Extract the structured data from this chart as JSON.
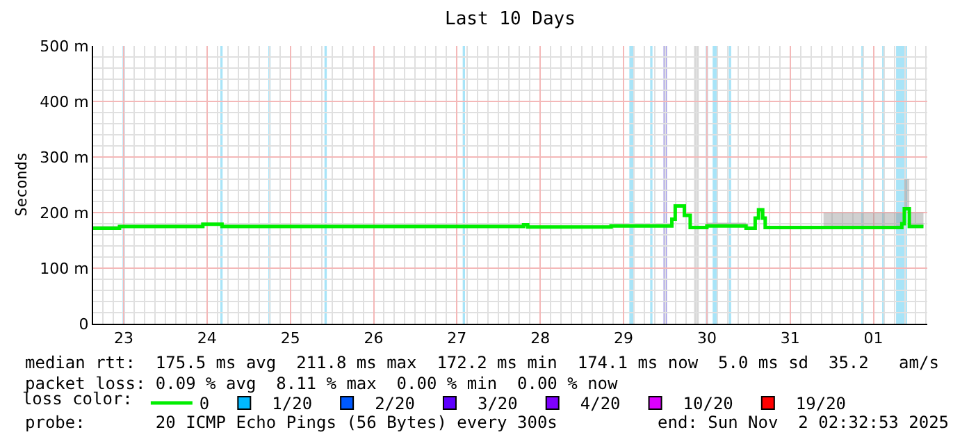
{
  "chart_data": {
    "type": "step",
    "title": "Last 10 Days",
    "ylabel": "Seconds",
    "x": [
      "2025-10-22T15:12",
      "2025-10-22T21:36",
      "2025-10-22T22:48",
      "2025-10-23T21:36",
      "2025-10-23T22:48",
      "2025-10-24T03:36",
      "2025-10-24T04:19",
      "2025-10-27T18:00",
      "2025-10-27T19:12",
      "2025-10-27T20:24",
      "2025-10-28T19:12",
      "2025-10-28T20:24",
      "2025-10-29T13:12",
      "2025-10-29T13:55",
      "2025-10-29T14:53",
      "2025-10-29T16:48",
      "2025-10-29T17:31",
      "2025-10-29T18:29",
      "2025-10-29T19:12",
      "2025-10-29T22:48",
      "2025-10-30T00:00",
      "2025-10-30T09:36",
      "2025-10-30T11:17",
      "2025-10-30T13:12",
      "2025-10-30T13:55",
      "2025-10-30T14:53",
      "2025-10-30T16:05",
      "2025-10-30T16:48",
      "2025-10-31T09:36",
      "2025-11-01T07:12",
      "2025-11-01T08:10",
      "2025-11-01T08:53",
      "2025-11-01T10:05",
      "2025-11-01T10:19",
      "2025-11-01T14:24"
    ],
    "series": [
      {
        "name": "0",
        "color": "#00ee00",
        "values": [
          172,
          172,
          175,
          175,
          179,
          179,
          175,
          175,
          178,
          174,
          174,
          176,
          176,
          188,
          212,
          212,
          195,
          195,
          173,
          173,
          176,
          176,
          172,
          172,
          190,
          205,
          190,
          173,
          173,
          173,
          180,
          207,
          207,
          175,
          175
        ],
        "lower": [
          172,
          172,
          175,
          175,
          179,
          179,
          175,
          175,
          178,
          174,
          174,
          176,
          176,
          188,
          212,
          212,
          195,
          195,
          173,
          173,
          176,
          176,
          172,
          172,
          190,
          205,
          190,
          173,
          173,
          173,
          180,
          207,
          207,
          175,
          175
        ],
        "upper": [
          176,
          176,
          178,
          178,
          182,
          182,
          178,
          178,
          181,
          177,
          177,
          179,
          179,
          191,
          215,
          215,
          198,
          198,
          176,
          176,
          182,
          182,
          175,
          175,
          193,
          208,
          193,
          176,
          200,
          200,
          200,
          260,
          260,
          200,
          200
        ]
      },
      {
        "name": "1/20",
        "color": "#00b8ff",
        "values": [
          null,
          null,
          null,
          null,
          null,
          null,
          null,
          null,
          null,
          null,
          null,
          null,
          null,
          null,
          null,
          null,
          null,
          null,
          null,
          null,
          null,
          null,
          null,
          null,
          null,
          null,
          null,
          null,
          null,
          null,
          null,
          null,
          null,
          null,
          null
        ]
      },
      {
        "name": "2/20",
        "color": "#0059ff",
        "values": [
          null,
          null,
          null,
          null,
          null,
          null,
          null,
          null,
          null,
          null,
          null,
          null,
          null,
          null,
          null,
          null,
          null,
          null,
          null,
          null,
          null,
          null,
          null,
          null,
          null,
          null,
          null,
          null,
          null,
          null,
          null,
          null,
          null,
          null,
          null
        ]
      },
      {
        "name": "3/20",
        "color": "#5e00ff",
        "values": [
          null,
          null,
          null,
          null,
          null,
          null,
          null,
          null,
          null,
          null,
          null,
          null,
          null,
          null,
          null,
          null,
          null,
          null,
          null,
          null,
          null,
          null,
          null,
          null,
          null,
          null,
          null,
          null,
          null,
          null,
          null,
          null,
          null,
          null,
          null
        ]
      },
      {
        "name": "4/20",
        "color": "#7e00ff",
        "values": [
          null,
          null,
          null,
          null,
          null,
          null,
          null,
          null,
          null,
          null,
          null,
          null,
          null,
          null,
          null,
          null,
          null,
          null,
          null,
          null,
          null,
          null,
          null,
          null,
          null,
          null,
          null,
          null,
          null,
          null,
          null,
          null,
          null,
          null,
          null
        ]
      },
      {
        "name": "10/20",
        "color": "#dd00ff",
        "values": [
          null,
          null,
          null,
          null,
          null,
          null,
          null,
          null,
          null,
          null,
          null,
          null,
          null,
          null,
          null,
          null,
          null,
          null,
          null,
          null,
          null,
          null,
          null,
          null,
          null,
          null,
          null,
          null,
          null,
          null,
          null,
          null,
          null,
          null,
          null
        ]
      },
      {
        "name": "19/20",
        "color": "#ff0000",
        "values": [
          null,
          null,
          null,
          null,
          null,
          null,
          null,
          null,
          null,
          null,
          null,
          null,
          null,
          null,
          null,
          null,
          null,
          null,
          null,
          null,
          null,
          null,
          null,
          null,
          null,
          null,
          null,
          null,
          null,
          null,
          null,
          null,
          null,
          null,
          null
        ]
      }
    ],
    "bands": [
      {
        "axis": "x",
        "from": "2025-10-22T23:40",
        "to": "2025-10-23T00:20",
        "color": "#a8e4f8"
      },
      {
        "axis": "x",
        "from": "2025-10-24T03:50",
        "to": "2025-10-24T04:30",
        "color": "#a8e4f8"
      },
      {
        "axis": "x",
        "from": "2025-10-24T17:40",
        "to": "2025-10-24T18:20",
        "color": "#a8e4f8"
      },
      {
        "axis": "x",
        "from": "2025-10-25T09:50",
        "to": "2025-10-25T10:30",
        "color": "#a8e4f8"
      },
      {
        "axis": "x",
        "from": "2025-10-27T01:40",
        "to": "2025-10-27T02:20",
        "color": "#a8e4f8"
      },
      {
        "axis": "x",
        "from": "2025-10-29T01:40",
        "to": "2025-10-29T03:10",
        "color": "#a8e4f8"
      },
      {
        "axis": "x",
        "from": "2025-10-29T07:40",
        "to": "2025-10-29T08:20",
        "color": "#a8e4f8"
      },
      {
        "axis": "x",
        "from": "2025-10-29T11:30",
        "to": "2025-10-29T12:30",
        "color": "#a8a0e8"
      },
      {
        "axis": "x",
        "from": "2025-10-29T20:20",
        "to": "2025-10-29T21:40",
        "color": "#d8d8d8"
      },
      {
        "axis": "x",
        "from": "2025-10-29T23:40",
        "to": "2025-10-30T00:20",
        "color": "#a8e4f8"
      },
      {
        "axis": "x",
        "from": "2025-10-30T01:40",
        "to": "2025-10-30T03:10",
        "color": "#a8e4f8"
      },
      {
        "axis": "x",
        "from": "2025-10-30T06:20",
        "to": "2025-10-30T07:00",
        "color": "#a8e4f8"
      },
      {
        "axis": "x",
        "from": "2025-10-31T20:30",
        "to": "2025-10-31T21:10",
        "color": "#a8e4f8"
      },
      {
        "axis": "x",
        "from": "2025-11-01T02:30",
        "to": "2025-11-01T03:10",
        "color": "#a8e4f8"
      },
      {
        "axis": "x",
        "from": "2025-11-01T06:30",
        "to": "2025-11-01T09:40",
        "color": "#a8e4f8"
      }
    ],
    "xlim": [
      "2025-10-22T15:12",
      "2025-11-01T15:30"
    ],
    "xticks": [
      {
        "value": "2025-10-23",
        "label": "23"
      },
      {
        "value": "2025-10-24",
        "label": "24"
      },
      {
        "value": "2025-10-25",
        "label": "25"
      },
      {
        "value": "2025-10-26",
        "label": "26"
      },
      {
        "value": "2025-10-27",
        "label": "27"
      },
      {
        "value": "2025-10-28",
        "label": "28"
      },
      {
        "value": "2025-10-29",
        "label": "29"
      },
      {
        "value": "2025-10-30",
        "label": "30"
      },
      {
        "value": "2025-10-31",
        "label": "31"
      },
      {
        "value": "2025-11-01",
        "label": "01"
      }
    ],
    "ylim": [
      0,
      500
    ],
    "yticks": [
      0,
      {
        "value": 100,
        "label": "100 m"
      },
      {
        "value": 200,
        "label": "200 m"
      },
      {
        "value": 300,
        "label": "300 m"
      },
      {
        "value": 400,
        "label": "400 m"
      },
      {
        "value": 500,
        "label": "500 m"
      }
    ],
    "grid": true,
    "legend": "bottom",
    "legend_title": "loss color:",
    "annotations": [
      "median rtt:  175.5 ms avg  211.8 ms max  172.2 ms min  174.1 ms now  5.0 ms sd  35.2   am/s",
      "packet loss: 0.09 % avg  8.11 % max  0.00 % min  0.00 % now",
      "probe:       20 ICMP Echo Pings (56 Bytes) every 300s",
      "end: Sun Nov  2 02:32:53 2025"
    ]
  }
}
